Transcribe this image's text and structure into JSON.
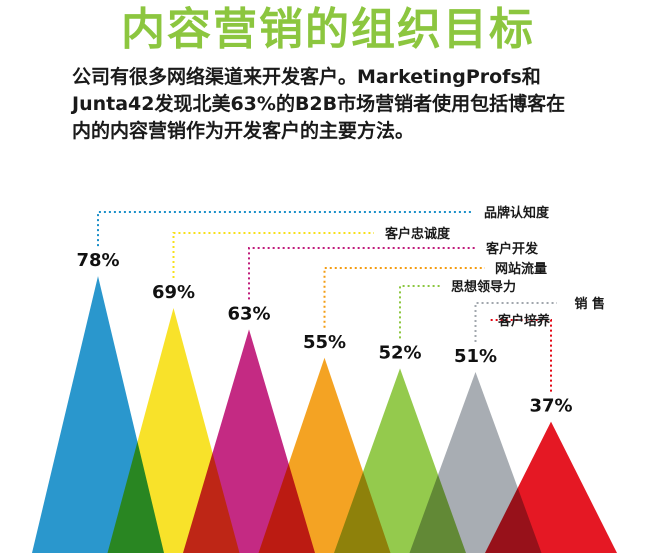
{
  "title": "内容营销的组织目标",
  "intro_lines": [
    "公司有很多网络渠道来开发客户。MarketingProfs和",
    "Junta42发现北美63%的B2B市场营销者使用包括博客在",
    "内的内容营销作为开发客户的主要方法。"
  ],
  "chart_data": {
    "type": "bar",
    "categories": [
      "品牌认知度",
      "客户忠诚度",
      "客户开发",
      "网站流量",
      "思想领导力",
      "销 售",
      "客户培养"
    ],
    "values": [
      78,
      69,
      63,
      55,
      52,
      51,
      37
    ],
    "value_labels": [
      "78%",
      "69%",
      "63%",
      "55%",
      "52%",
      "51%",
      "37%"
    ],
    "unit": "%",
    "colors": [
      "#1a8fc9",
      "#f7e01a",
      "#bf1a7a",
      "#f39c12",
      "#8cc63f",
      "#a1a7ad",
      "#e30613"
    ]
  }
}
